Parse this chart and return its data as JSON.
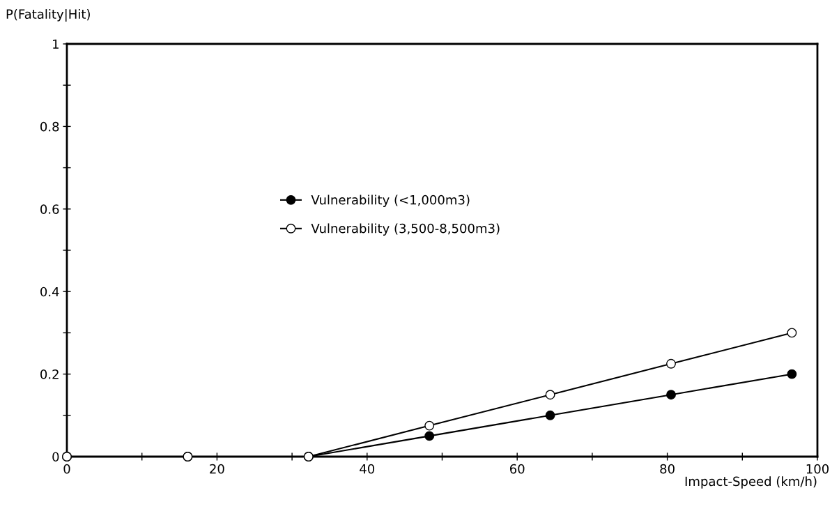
{
  "chart_data": {
    "type": "line",
    "xlabel": "Impact-Speed (km/h)",
    "ylabel": "P(Fatality|Hit)",
    "x": [
      0,
      16.1,
      32.2,
      48.3,
      64.4,
      80.5,
      96.6
    ],
    "series": [
      {
        "name": "Vulnerability (<1,000m3)",
        "color": "#000000",
        "values": [
          0,
          0,
          0,
          0.05,
          0.1,
          0.15,
          0.2
        ]
      },
      {
        "name": "Vulnerability (3,500-8,500m3)",
        "color": "#ffffff",
        "values": [
          0,
          0,
          0,
          0.075,
          0.15,
          0.225,
          0.3
        ]
      }
    ],
    "xlim": [
      0,
      100
    ],
    "xticks": [
      0,
      {
        "value": 10,
        "label": null
      },
      20,
      {
        "value": 30,
        "label": null
      },
      40,
      {
        "value": 50,
        "label": null
      },
      60,
      {
        "value": 70,
        "label": null
      },
      80,
      {
        "value": 90,
        "label": null
      },
      100
    ],
    "ylim": [
      0,
      1
    ],
    "yticks": [
      0,
      {
        "value": 0.1,
        "label": null
      },
      0.2,
      {
        "value": 0.3,
        "label": null
      },
      0.4,
      {
        "value": 0.5,
        "label": null
      },
      0.6,
      {
        "value": 0.7,
        "label": null
      },
      0.8,
      {
        "value": 0.9,
        "label": null
      },
      1
    ],
    "marker": "circle",
    "line_style": "solid",
    "grid": false,
    "legend": "center"
  }
}
